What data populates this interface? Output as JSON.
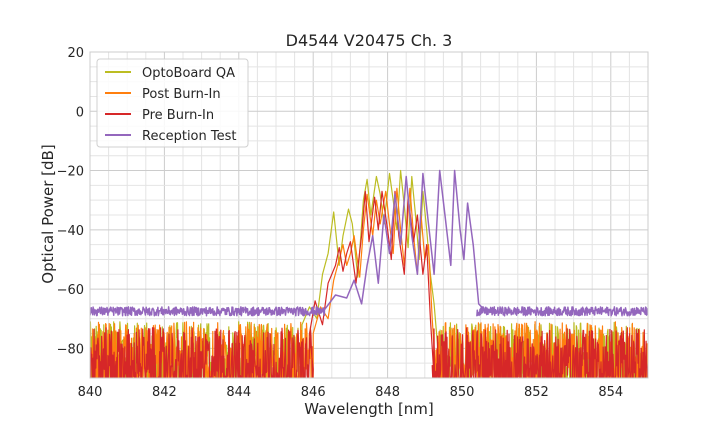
{
  "chart_data": {
    "type": "line",
    "title": "D4544 V20475 Ch. 3",
    "xlabel": "Wavelength [nm]",
    "ylabel": "Optical Power [dB]",
    "xlim": [
      840,
      855
    ],
    "ylim": [
      -90,
      20
    ],
    "x_ticks": [
      "840",
      "842",
      "844",
      "846",
      "848",
      "850",
      "852",
      "854"
    ],
    "y_ticks": [
      "20",
      "0",
      "−20",
      "−40",
      "−60",
      "−80"
    ],
    "grid": true,
    "legend_position": "top-left",
    "series": [
      {
        "name": "OptoBoard QA",
        "color": "#bcbd22",
        "noise_floor": {
          "x_ranges": [
            [
              840,
              845.7
            ],
            [
              849.4,
              855
            ]
          ],
          "y_range": [
            -90,
            -71
          ]
        },
        "x": [
          845.7,
          845.9,
          846.1,
          846.25,
          846.4,
          846.55,
          846.7,
          846.8,
          846.95,
          847.05,
          847.2,
          847.35,
          847.45,
          847.55,
          847.7,
          847.8,
          847.9,
          848.05,
          848.15,
          848.25,
          848.35,
          848.45,
          848.55,
          848.65,
          848.75,
          848.85,
          848.95,
          849.05,
          849.15,
          849.25,
          849.35,
          849.45
        ],
        "y": [
          -72,
          -66,
          -70,
          -55,
          -48,
          -34,
          -52,
          -42,
          -33,
          -38,
          -56,
          -30,
          -23,
          -35,
          -22,
          -28,
          -38,
          -21,
          -30,
          -40,
          -20,
          -32,
          -46,
          -22,
          -35,
          -50,
          -27,
          -40,
          -55,
          -65,
          -80,
          -90
        ]
      },
      {
        "name": "Post Burn-In",
        "color": "#ff7f0e",
        "noise_floor": {
          "x_ranges": [
            [
              840,
              846
            ],
            [
              849.3,
              855
            ]
          ],
          "y_range": [
            -90,
            -71
          ]
        },
        "x": [
          846.0,
          846.2,
          846.4,
          846.55,
          846.7,
          846.8,
          846.9,
          847.0,
          847.1,
          847.25,
          847.35,
          847.45,
          847.6,
          847.7,
          847.8,
          847.95,
          848.05,
          848.15,
          848.25,
          848.35,
          848.45,
          848.6,
          848.7,
          848.8,
          848.9,
          849.0,
          849.1,
          849.2,
          849.3
        ],
        "y": [
          -75,
          -66,
          -70,
          -57,
          -50,
          -45,
          -52,
          -48,
          -42,
          -56,
          -40,
          -28,
          -42,
          -30,
          -38,
          -27,
          -38,
          -48,
          -26,
          -40,
          -52,
          -26,
          -42,
          -55,
          -35,
          -50,
          -45,
          -70,
          -90
        ]
      },
      {
        "name": "Pre Burn-In",
        "color": "#d62728",
        "noise_floor": {
          "x_ranges": [
            [
              840,
              846
            ],
            [
              849.2,
              855
            ]
          ],
          "y_range": [
            -90,
            -73
          ]
        },
        "x": [
          845.9,
          846.05,
          846.25,
          846.4,
          846.6,
          846.7,
          846.8,
          846.9,
          847.0,
          847.15,
          847.3,
          847.4,
          847.5,
          847.65,
          847.75,
          847.85,
          848.0,
          848.1,
          848.2,
          848.3,
          848.45,
          848.55,
          848.7,
          848.8,
          848.95,
          849.05,
          849.15,
          849.25
        ],
        "y": [
          -75,
          -64,
          -72,
          -58,
          -52,
          -46,
          -54,
          -48,
          -44,
          -58,
          -42,
          -27,
          -44,
          -29,
          -40,
          -27,
          -40,
          -50,
          -27,
          -42,
          -55,
          -29,
          -44,
          -35,
          -55,
          -45,
          -70,
          -90
        ]
      },
      {
        "name": "Reception Test",
        "color": "#9467bd",
        "noise_floor": {
          "x_ranges": [
            [
              840,
              846.3
            ],
            [
              850.4,
              855
            ]
          ],
          "y_range": [
            -69,
            -66
          ]
        },
        "x": [
          846.3,
          846.6,
          846.9,
          847.1,
          847.3,
          847.45,
          847.6,
          847.75,
          847.9,
          848.05,
          848.2,
          848.35,
          848.5,
          848.65,
          848.8,
          848.95,
          849.1,
          849.25,
          849.4,
          849.55,
          849.7,
          849.8,
          849.95,
          850.05,
          850.15,
          850.3,
          850.45,
          850.6
        ],
        "y": [
          -67,
          -62,
          -63,
          -57,
          -65,
          -52,
          -42,
          -58,
          -35,
          -48,
          -28,
          -45,
          -22,
          -42,
          -55,
          -21,
          -38,
          -55,
          -20,
          -36,
          -52,
          -20,
          -40,
          -50,
          -31,
          -45,
          -65,
          -67
        ]
      }
    ]
  }
}
